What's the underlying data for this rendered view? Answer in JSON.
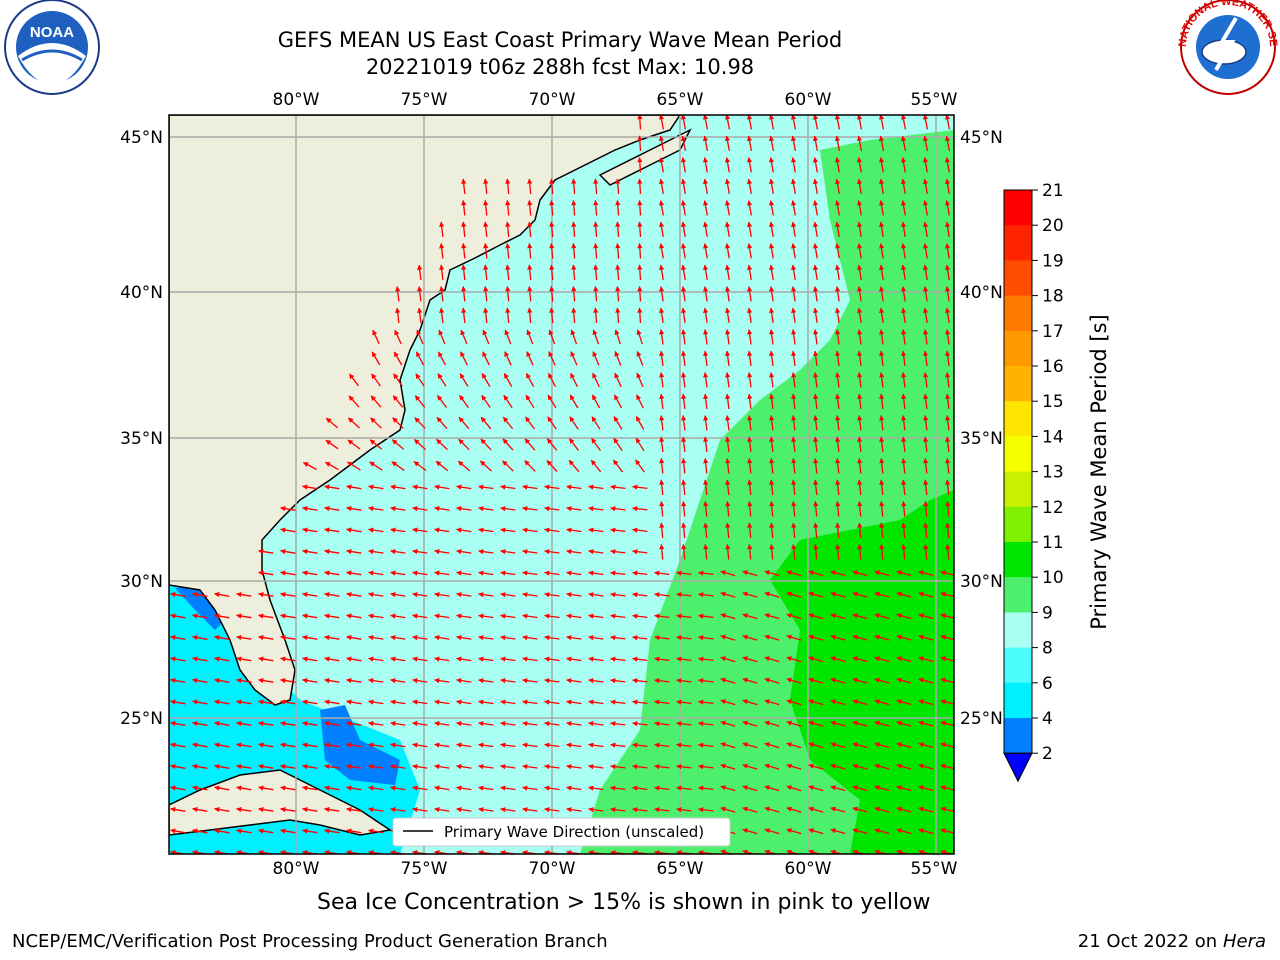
{
  "title_line1": "GEFS MEAN US East Coast Primary Wave Mean Period",
  "title_line2": "20221019 t06z 288h fcst   Max: 10.98",
  "bottom_note": "Sea Ice Concentration > 15% is shown in pink to yellow",
  "footer_left": "NCEP/EMC/Verification Post Processing Product Generation Branch",
  "footer_date": "21 Oct 2022 on",
  "footer_machine": "Hera",
  "logos": {
    "left": "NOAA",
    "right": "NATIONAL WEATHER SERVICE"
  },
  "map": {
    "lon_ticks": [
      "80°W",
      "75°W",
      "70°W",
      "65°W",
      "60°W",
      "55°W"
    ],
    "lat_ticks": [
      "45°N",
      "40°N",
      "35°N",
      "30°N",
      "25°N"
    ],
    "legend_label": "Primary Wave Direction (unscaled)",
    "field": "Primary Wave Mean Period",
    "max_value": 10.98
  },
  "colorbar": {
    "label": "Primary Wave Mean Period [s]",
    "levels": [
      "21",
      "20",
      "19",
      "18",
      "17",
      "16",
      "15",
      "14",
      "13",
      "12",
      "11",
      "10",
      "9",
      "8",
      "6",
      "4",
      "2"
    ],
    "colors": [
      "#ff0000",
      "#ff2400",
      "#ff4d00",
      "#ff7a00",
      "#ff9900",
      "#ffb300",
      "#ffe600",
      "#f5ff00",
      "#c8f000",
      "#7ef000",
      "#00e600",
      "#4cf06c",
      "#a8fff2",
      "#4dfdfd",
      "#00f0ff",
      "#0080ff",
      "#0000ff"
    ],
    "extend": "min"
  },
  "colors": {
    "land": "#eeeedc",
    "ocean_low": "#a8fff2",
    "ocean_mid": "#4cf06c",
    "ocean_high": "#00e600",
    "gulf": "#00f0ff",
    "shallow": "#0080ff",
    "arrow": "#ff0000"
  }
}
